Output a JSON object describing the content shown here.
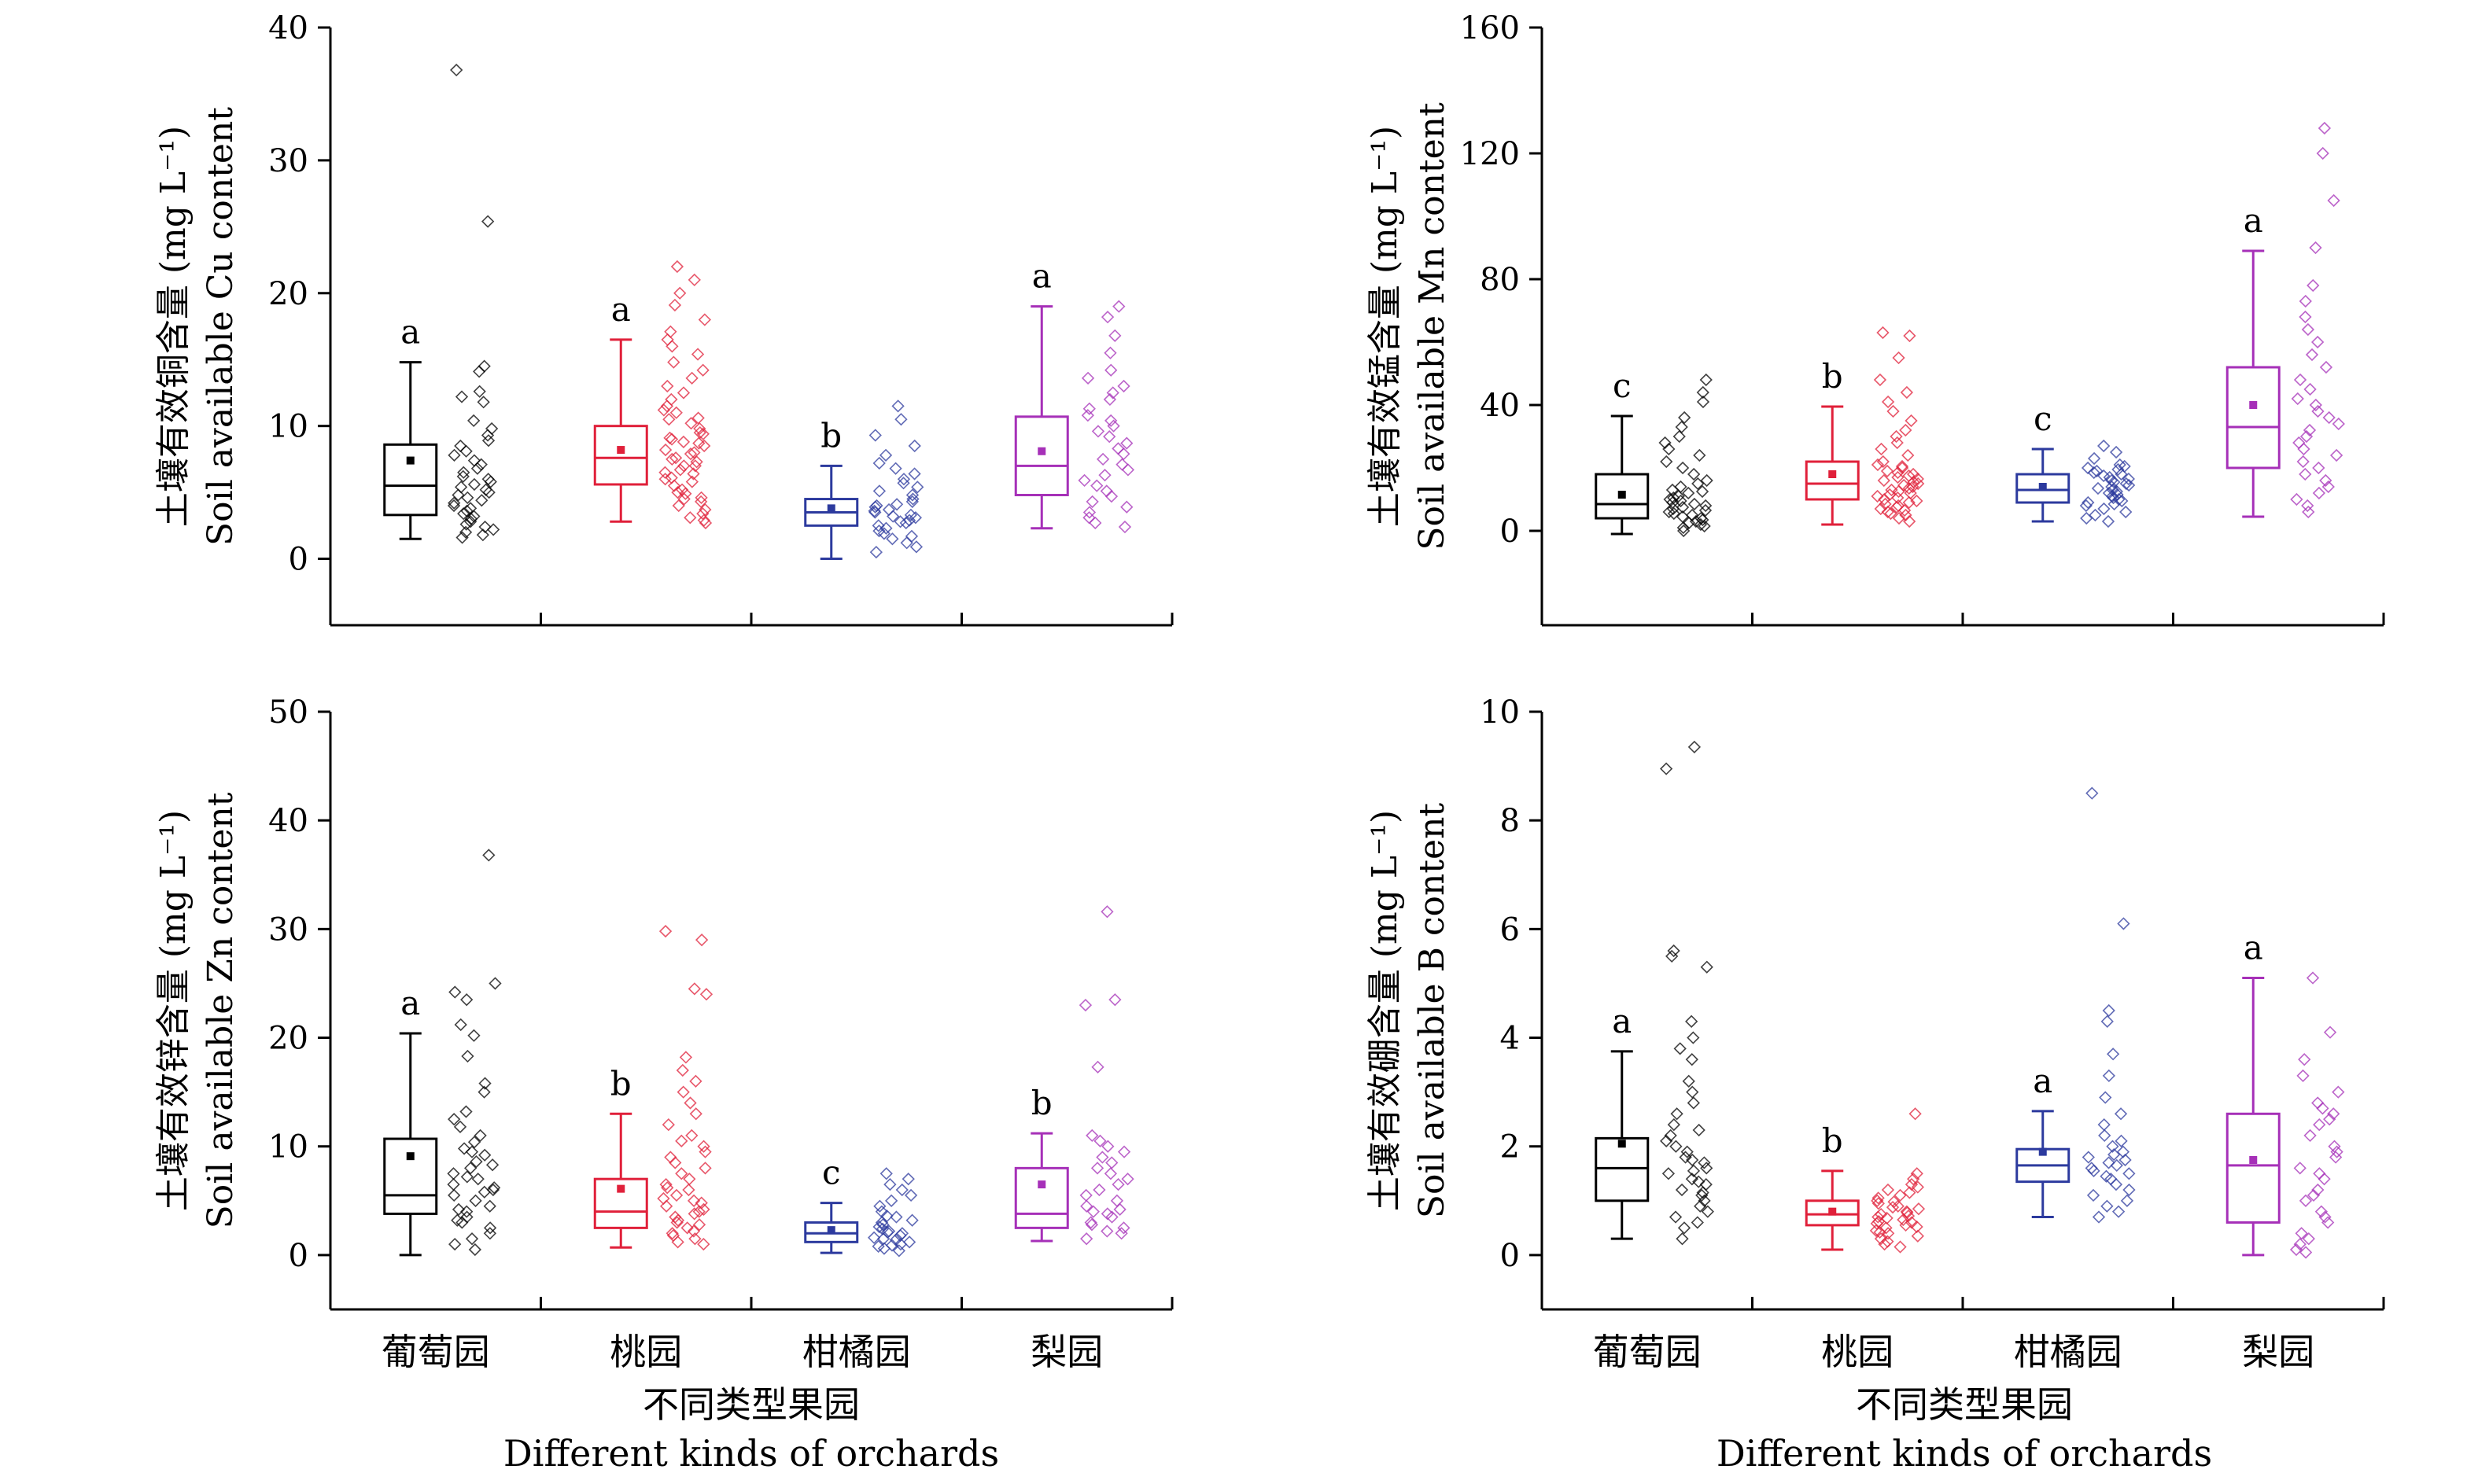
{
  "figure": {
    "x_title_cn": "不同类型果园",
    "x_title_en": "Different kinds of orchards",
    "categories": [
      "葡萄园",
      "桃园",
      "柑橘园",
      "梨园"
    ],
    "colors": [
      "#000000",
      "#e0203a",
      "#2c3a9e",
      "#a630b8"
    ]
  },
  "chart_data": [
    {
      "type": "box",
      "id": "cu",
      "ylabel_cn": "土壤有效铜含量 (mg L⁻¹)",
      "ylabel_en": "Soil available Cu content",
      "ylim": [
        -5,
        40
      ],
      "yticks": [
        0,
        10,
        20,
        30,
        40
      ],
      "categories": [
        "葡萄园",
        "桃园",
        "柑橘园",
        "梨园"
      ],
      "boxes": [
        {
          "min": 1.5,
          "q1": 3.3,
          "median": 5.5,
          "q3": 8.6,
          "max": 14.8,
          "mean": 7.4,
          "sig": "a",
          "points": [
            36.8,
            25.4,
            14.5,
            14.1,
            12.6,
            12.2,
            11.8,
            10.4,
            9.8,
            9.3,
            8.9,
            8.5,
            8.1,
            7.8,
            7.4,
            7.1,
            6.8,
            6.5,
            6.2,
            6.0,
            5.8,
            5.6,
            5.4,
            5.2,
            5.0,
            4.8,
            4.6,
            4.4,
            4.2,
            4.0,
            3.8,
            3.6,
            3.4,
            3.2,
            3.0,
            2.8,
            2.6,
            2.4,
            2.2,
            2.0,
            1.8,
            1.6
          ]
        },
        {
          "min": 2.8,
          "q1": 5.6,
          "median": 7.6,
          "q3": 10.0,
          "max": 16.5,
          "mean": 8.2,
          "sig": "a",
          "points": [
            22.0,
            21.0,
            20.0,
            19.1,
            18.0,
            17.1,
            16.5,
            16.0,
            15.4,
            14.8,
            14.2,
            13.6,
            13.0,
            12.5,
            12.0,
            11.5,
            11.0,
            10.6,
            10.2,
            9.8,
            9.4,
            9.1,
            8.8,
            8.5,
            8.2,
            7.9,
            7.6,
            7.3,
            7.0,
            6.7,
            6.4,
            6.1,
            5.8,
            5.5,
            5.2,
            4.9,
            4.6,
            4.3,
            4.0,
            3.7,
            3.4,
            3.1,
            2.9,
            2.7,
            8.0,
            7.5,
            7.0,
            6.5,
            9.0,
            9.5,
            6.0,
            5.0,
            4.5,
            10.5,
            11.2,
            8.7
          ]
        },
        {
          "min": 0.0,
          "q1": 2.5,
          "median": 3.5,
          "q3": 4.5,
          "max": 7.0,
          "mean": 3.8,
          "sig": "b",
          "points": [
            11.5,
            10.5,
            9.3,
            8.5,
            7.8,
            7.2,
            6.8,
            6.4,
            6.0,
            5.7,
            5.4,
            5.1,
            4.8,
            4.5,
            4.3,
            4.1,
            3.9,
            3.7,
            3.5,
            3.3,
            3.1,
            2.9,
            2.7,
            2.5,
            2.3,
            2.1,
            1.9,
            1.7,
            1.5,
            1.2,
            0.9,
            0.5,
            4.0,
            3.6,
            3.2,
            2.8
          ]
        },
        {
          "min": 2.3,
          "q1": 4.8,
          "median": 7.0,
          "q3": 10.7,
          "max": 19.0,
          "mean": 8.1,
          "sig": "a",
          "points": [
            19.0,
            18.2,
            16.8,
            15.5,
            14.2,
            13.6,
            13.0,
            12.5,
            12.0,
            11.3,
            10.8,
            10.4,
            10.0,
            9.6,
            9.2,
            8.7,
            8.3,
            7.9,
            7.5,
            7.1,
            6.7,
            6.3,
            5.9,
            5.5,
            5.1,
            4.7,
            4.3,
            3.9,
            3.5,
            3.1,
            2.7,
            2.4
          ]
        }
      ]
    },
    {
      "type": "box",
      "id": "mn",
      "ylabel_cn": "土壤有效锰含量 (mg L⁻¹)",
      "ylabel_en": "Soil available Mn content",
      "ylim": [
        -30,
        160
      ],
      "yticks": [
        0,
        40,
        80,
        120,
        160
      ],
      "categories": [
        "葡萄园",
        "桃园",
        "柑橘园",
        "梨园"
      ],
      "boxes": [
        {
          "min": -1,
          "q1": 4,
          "median": 8.5,
          "q3": 18,
          "max": 36.5,
          "mean": 11.5,
          "sig": "c",
          "points": [
            48,
            44,
            41,
            36,
            33,
            30,
            28,
            26,
            24,
            22,
            20,
            18,
            16,
            15,
            14,
            13,
            12,
            11,
            10,
            9,
            8,
            7,
            6,
            5,
            4,
            3,
            2,
            1,
            0,
            6.5,
            7.5,
            8.5,
            9.5,
            10.5,
            3.5,
            2.5,
            5.5,
            4.5,
            1.5,
            12.5
          ]
        },
        {
          "min": 2,
          "q1": 10,
          "median": 15,
          "q3": 22,
          "max": 39.5,
          "mean": 18,
          "sig": "b",
          "points": [
            63,
            62,
            55,
            48,
            44,
            41,
            38,
            35,
            32,
            30,
            28,
            26,
            24,
            22,
            21,
            20,
            19,
            18,
            17,
            16,
            15,
            14,
            13,
            12,
            11,
            10,
            9,
            8,
            7,
            6,
            5,
            4,
            3,
            16.5,
            15.5,
            14.5,
            13.5,
            12.5,
            11.5,
            10.5,
            9.5,
            8.5,
            20.5,
            18.5,
            17.5,
            7.5,
            6.5,
            5.5
          ]
        },
        {
          "min": 3,
          "q1": 9,
          "median": 13,
          "q3": 18,
          "max": 26,
          "mean": 14,
          "sig": "c",
          "points": [
            27,
            25,
            23,
            21,
            20,
            19,
            18,
            17,
            16,
            15,
            14,
            13,
            12,
            11,
            10,
            9,
            8,
            7,
            6,
            5,
            4,
            3,
            15.5,
            14.5,
            13.5,
            12.5,
            11.5,
            10.5,
            9.5,
            8.5,
            16.5,
            17.5,
            18.5,
            19.5,
            20.5
          ]
        },
        {
          "min": 4.5,
          "q1": 20,
          "median": 33,
          "q3": 52,
          "max": 89,
          "mean": 40,
          "sig": "a",
          "points": [
            128,
            120,
            105,
            90,
            78,
            73,
            68,
            64,
            60,
            56,
            52,
            48,
            45,
            42,
            40,
            38,
            36,
            34,
            32,
            30,
            28,
            26,
            24,
            22,
            20,
            18,
            16,
            14,
            12,
            10,
            8,
            6
          ]
        }
      ]
    },
    {
      "type": "box",
      "id": "zn",
      "ylabel_cn": "土壤有效锌含量 (mg L⁻¹)",
      "ylabel_en": "Soil available Zn content",
      "ylim": [
        -5,
        50
      ],
      "yticks": [
        0,
        10,
        20,
        30,
        40,
        50
      ],
      "categories": [
        "葡萄园",
        "桃园",
        "柑橘园",
        "梨园"
      ],
      "boxes": [
        {
          "min": 0.0,
          "q1": 3.8,
          "median": 5.5,
          "q3": 10.7,
          "max": 20.4,
          "mean": 9.1,
          "sig": "a",
          "points": [
            36.8,
            25.0,
            24.2,
            23.5,
            21.2,
            20.2,
            18.3,
            15.8,
            15.0,
            13.2,
            12.5,
            11.8,
            11.0,
            10.4,
            9.8,
            9.2,
            8.6,
            8.0,
            7.5,
            7.0,
            6.5,
            6.0,
            5.5,
            5.0,
            4.5,
            4.0,
            3.5,
            3.0,
            2.5,
            2.0,
            1.5,
            1.0,
            0.5,
            6.2,
            7.2,
            5.8,
            4.2,
            3.2,
            8.3,
            9.5
          ]
        },
        {
          "min": 0.7,
          "q1": 2.5,
          "median": 4.0,
          "q3": 7.0,
          "max": 13.0,
          "mean": 6.1,
          "sig": "b",
          "points": [
            29.8,
            29.0,
            24.5,
            24.0,
            18.2,
            17.0,
            16.0,
            15.0,
            14.0,
            13.0,
            12.0,
            11.0,
            10.5,
            10.0,
            9.5,
            9.0,
            8.5,
            8.0,
            7.5,
            7.0,
            6.5,
            6.0,
            5.5,
            5.0,
            4.5,
            4.0,
            3.5,
            3.0,
            2.5,
            2.0,
            1.5,
            1.0,
            4.2,
            3.8,
            3.2,
            2.8,
            2.2,
            1.8,
            1.2,
            6.2,
            5.2,
            4.8
          ]
        },
        {
          "min": 0.2,
          "q1": 1.2,
          "median": 2.0,
          "q3": 3.0,
          "max": 4.8,
          "mean": 2.3,
          "sig": "c",
          "points": [
            7.5,
            7.0,
            6.5,
            6.0,
            5.5,
            5.0,
            4.5,
            4.0,
            3.5,
            3.0,
            2.8,
            2.6,
            2.4,
            2.2,
            2.0,
            1.8,
            1.6,
            1.4,
            1.2,
            1.0,
            0.8,
            0.6,
            0.4,
            3.2,
            3.6,
            2.1,
            1.5,
            0.9
          ]
        },
        {
          "min": 1.3,
          "q1": 2.5,
          "median": 3.8,
          "q3": 8.0,
          "max": 11.2,
          "mean": 6.5,
          "sig": "b",
          "points": [
            31.6,
            23.5,
            23.0,
            17.3,
            11.0,
            10.5,
            10.0,
            9.5,
            9.0,
            8.5,
            8.0,
            7.5,
            7.0,
            6.5,
            6.0,
            5.5,
            5.0,
            4.5,
            4.0,
            3.5,
            3.0,
            2.5,
            2.0,
            1.5,
            3.8,
            4.2,
            2.8,
            2.2
          ]
        }
      ]
    },
    {
      "type": "box",
      "id": "b",
      "ylabel_cn": "土壤有效硼含量 (mg L⁻¹)",
      "ylabel_en": "Soil available B content",
      "ylim": [
        -1,
        10
      ],
      "yticks": [
        0,
        2,
        4,
        6,
        8,
        10
      ],
      "categories": [
        "葡萄园",
        "桃园",
        "柑橘园",
        "梨园"
      ],
      "boxes": [
        {
          "min": 0.3,
          "q1": 1.0,
          "median": 1.6,
          "q3": 2.15,
          "max": 3.75,
          "mean": 2.05,
          "sig": "a",
          "points": [
            9.35,
            8.95,
            5.6,
            5.5,
            5.3,
            4.3,
            4.0,
            3.8,
            3.6,
            3.2,
            3.0,
            2.8,
            2.6,
            2.4,
            2.2,
            2.0,
            1.9,
            1.8,
            1.7,
            1.6,
            1.5,
            1.4,
            1.3,
            1.2,
            1.1,
            1.0,
            0.9,
            0.8,
            0.7,
            0.6,
            0.5,
            0.3,
            1.75,
            1.55,
            1.35,
            1.15,
            2.1,
            2.3
          ]
        },
        {
          "min": 0.1,
          "q1": 0.55,
          "median": 0.75,
          "q3": 1.0,
          "max": 1.55,
          "mean": 0.8,
          "sig": "b",
          "points": [
            2.6,
            1.5,
            1.4,
            1.3,
            1.2,
            1.1,
            1.0,
            0.95,
            0.9,
            0.85,
            0.8,
            0.75,
            0.7,
            0.65,
            0.6,
            0.55,
            0.5,
            0.45,
            0.4,
            0.35,
            0.3,
            0.25,
            0.2,
            0.15,
            1.05,
            0.88,
            0.72,
            0.62,
            0.52,
            0.42,
            0.78,
            0.68,
            0.58,
            0.98,
            1.15,
            1.25
          ]
        },
        {
          "min": 0.7,
          "q1": 1.35,
          "median": 1.65,
          "q3": 1.95,
          "max": 2.65,
          "mean": 1.9,
          "sig": "a",
          "points": [
            8.5,
            6.1,
            4.5,
            4.3,
            3.7,
            3.3,
            2.9,
            2.6,
            2.4,
            2.2,
            2.1,
            2.0,
            1.9,
            1.8,
            1.7,
            1.6,
            1.5,
            1.4,
            1.3,
            1.2,
            1.1,
            1.0,
            0.9,
            0.8,
            0.7,
            1.75,
            1.65,
            1.55,
            1.85,
            1.45
          ]
        },
        {
          "min": 0.0,
          "q1": 0.6,
          "median": 1.65,
          "q3": 2.6,
          "max": 5.1,
          "mean": 1.75,
          "sig": "a",
          "points": [
            5.1,
            4.1,
            3.6,
            3.3,
            3.0,
            2.8,
            2.6,
            2.4,
            2.2,
            2.0,
            1.8,
            1.6,
            1.4,
            1.2,
            1.0,
            0.8,
            0.6,
            0.4,
            0.2,
            0.1,
            0.05,
            2.7,
            2.5,
            1.9,
            1.5,
            1.1,
            0.7,
            0.3
          ]
        }
      ]
    }
  ]
}
